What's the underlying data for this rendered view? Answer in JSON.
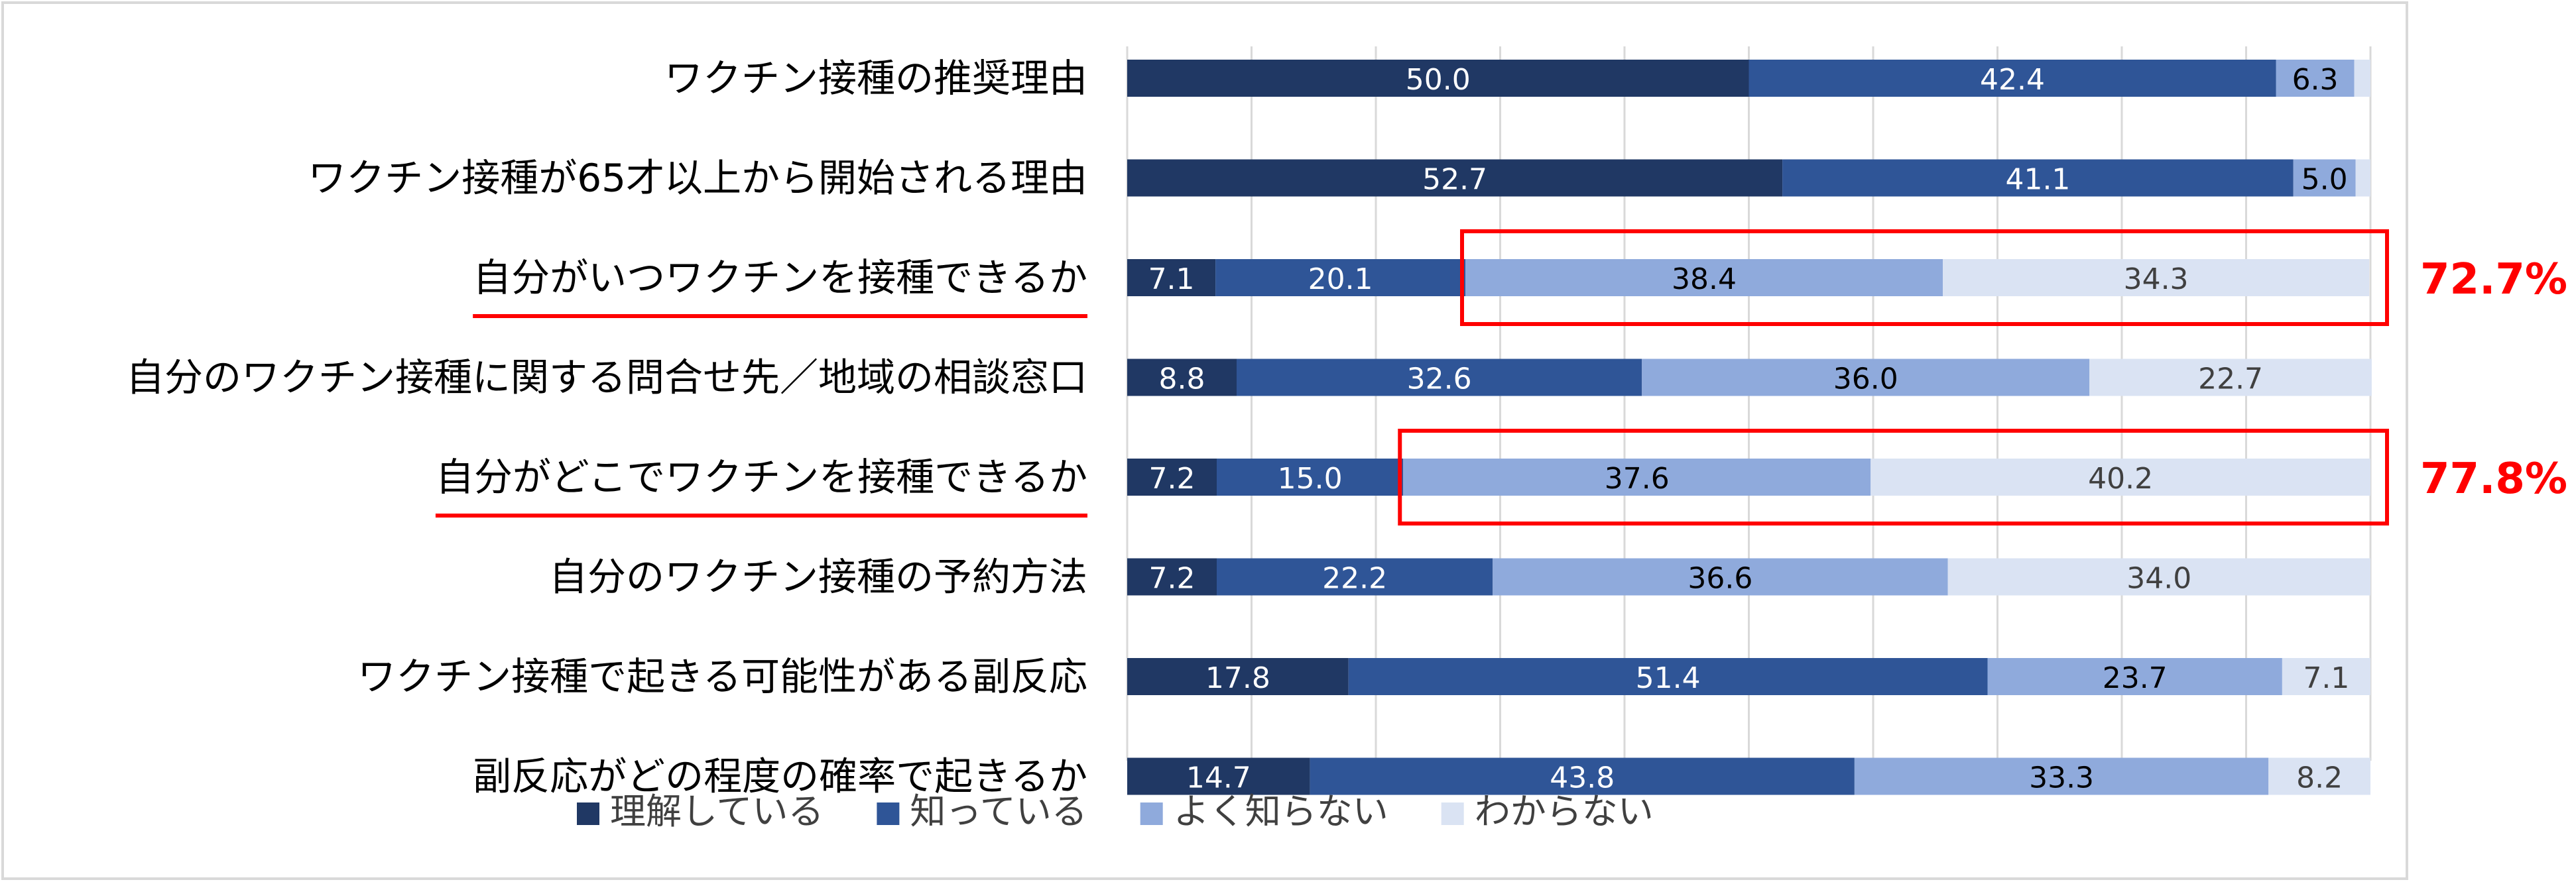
{
  "chart_data": {
    "type": "bar",
    "orientation": "horizontal",
    "stacked": true,
    "percent_total": 100,
    "categories": [
      "ワクチン接種の推奨理由",
      "ワクチン接種が65才以上から開始される理由",
      "自分がいつワクチンを接種できるか",
      "自分のワクチン接種に関する問合せ先／地域の相談窓口",
      "自分がどこでワクチンを接種できるか",
      "自分のワクチン接種の予約方法",
      "ワクチン接種で起きる可能性がある副反応",
      "副反応がどの程度の確率で起きるか"
    ],
    "series": [
      {
        "name": "理解している",
        "color": "#203864",
        "label_color": "#ffffff",
        "values": [
          50.0,
          52.7,
          7.1,
          8.8,
          7.2,
          7.2,
          17.8,
          14.7
        ]
      },
      {
        "name": "知っている",
        "color": "#2f5597",
        "label_color": "#ffffff",
        "values": [
          42.4,
          41.1,
          20.1,
          32.6,
          15.0,
          22.2,
          51.4,
          43.8
        ]
      },
      {
        "name": "よく知らない",
        "color": "#8faadc",
        "label_color": "#000000",
        "values": [
          6.3,
          5.0,
          38.4,
          36.0,
          37.6,
          36.6,
          23.7,
          33.3
        ]
      },
      {
        "name": "わからない",
        "color": "#dae3f3",
        "label_color": "#404040",
        "values": [
          1.3,
          1.2,
          34.3,
          22.7,
          40.2,
          34.0,
          7.1,
          8.2
        ]
      }
    ],
    "hidden_labels": [
      [
        3
      ],
      [
        3
      ],
      [],
      [],
      [],
      [],
      [],
      []
    ],
    "xlim": [
      0,
      100
    ],
    "grid": true,
    "legend_position": "bottom",
    "highlights": [
      {
        "row": 2,
        "series_from": 2,
        "total_label": "72.7%",
        "underline_label": true
      },
      {
        "row": 4,
        "series_from": 2,
        "total_label": "77.8%",
        "underline_label": true
      }
    ],
    "highlight_color": "#ff0000"
  }
}
